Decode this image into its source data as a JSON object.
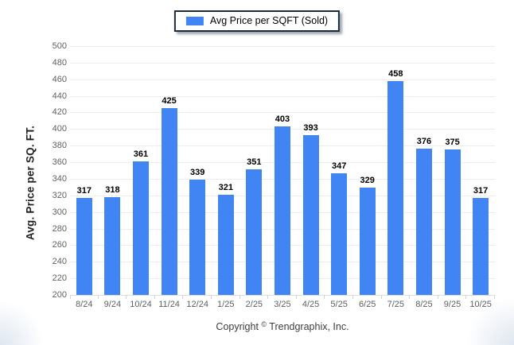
{
  "legend": {
    "label": "Avg Price per SQFT (Sold)"
  },
  "footer": {
    "pre": "Copyright",
    "symbol": "©",
    "post": " Trendgraphix, Inc."
  },
  "colors": {
    "bar": "#4184f3",
    "grid": "#ededed",
    "tick_text": "#5f5f5f",
    "legend_border": "#1c2b3a"
  },
  "chart_data": {
    "type": "bar",
    "title": "",
    "xlabel": "",
    "ylabel": "Avg. Price per SQ. FT.",
    "categories": [
      "8/24",
      "9/24",
      "10/24",
      "11/24",
      "12/24",
      "1/25",
      "2/25",
      "3/25",
      "4/25",
      "5/25",
      "6/25",
      "7/25",
      "8/25",
      "9/25",
      "10/25"
    ],
    "series": [
      {
        "name": "Avg Price per SQFT (Sold)",
        "values": [
          317,
          318,
          361,
          425,
          339,
          321,
          351,
          403,
          393,
          347,
          329,
          458,
          376,
          375,
          317
        ]
      }
    ],
    "ylim": [
      200,
      500
    ],
    "ytick_step": 20,
    "grid": true,
    "legend_position": "top-center",
    "bar_color": "#4184f3",
    "value_labels": true
  }
}
